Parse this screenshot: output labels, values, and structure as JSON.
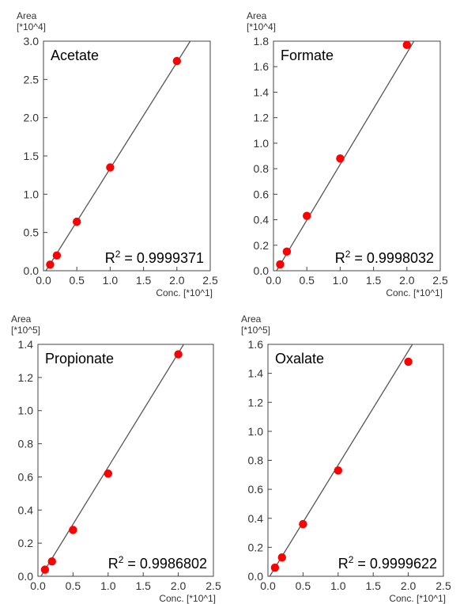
{
  "chart_data": [
    {
      "type": "scatter",
      "label": "Acetate",
      "ylabel_top": "Area",
      "ylabel_unit": "[*10^4]",
      "xlabel": "Conc. [*10^1]",
      "r2_prefix": "R",
      "r2_exp": "2",
      "r2_value": " = 0.9999371",
      "xlim": [
        0,
        2.5
      ],
      "ylim": [
        0,
        3.0
      ],
      "xticks": [
        "0.0",
        "0.5",
        "1.0",
        "1.5",
        "2.0",
        "2.5"
      ],
      "yticks": [
        "0.0",
        "0.5",
        "1.0",
        "1.5",
        "2.0",
        "2.5",
        "3.0"
      ],
      "points": [
        {
          "x": 0.1,
          "y": 0.08
        },
        {
          "x": 0.2,
          "y": 0.2
        },
        {
          "x": 0.5,
          "y": 0.64
        },
        {
          "x": 1.0,
          "y": 1.35
        },
        {
          "x": 2.0,
          "y": 2.74
        }
      ],
      "fit_line": [
        [
          0.0,
          -0.05
        ],
        [
          2.2,
          3.0
        ]
      ],
      "marker_color": "#ff0000",
      "line_color": "#555555"
    },
    {
      "type": "scatter",
      "label": "Formate",
      "ylabel_top": "Area",
      "ylabel_unit": "[*10^4]",
      "xlabel": "Conc. [*10^1]",
      "r2_prefix": "R",
      "r2_exp": "2",
      "r2_value": " = 0.9998032",
      "xlim": [
        0,
        2.5
      ],
      "ylim": [
        0,
        1.8
      ],
      "xticks": [
        "0.0",
        "0.5",
        "1.0",
        "1.5",
        "2.0",
        "2.5"
      ],
      "yticks": [
        "0.0",
        "0.2",
        "0.4",
        "0.6",
        "0.8",
        "1.0",
        "1.2",
        "1.4",
        "1.6",
        "1.8"
      ],
      "points": [
        {
          "x": 0.1,
          "y": 0.05
        },
        {
          "x": 0.2,
          "y": 0.15
        },
        {
          "x": 0.5,
          "y": 0.43
        },
        {
          "x": 1.0,
          "y": 0.88
        },
        {
          "x": 2.0,
          "y": 1.77
        }
      ],
      "fit_line": [
        [
          0.0,
          -0.04
        ],
        [
          2.22,
          1.9
        ]
      ],
      "marker_color": "#ff0000",
      "line_color": "#555555"
    },
    {
      "type": "scatter",
      "label": "Propionate",
      "ylabel_top": "Area",
      "ylabel_unit": "[*10^5]",
      "xlabel": "Conc. [*10^1]",
      "r2_prefix": "R",
      "r2_exp": "2",
      "r2_value": " = 0.9986802",
      "xlim": [
        0,
        2.5
      ],
      "ylim": [
        0,
        1.4
      ],
      "xticks": [
        "0.0",
        "0.5",
        "1.0",
        "1.5",
        "2.0",
        "2.5"
      ],
      "yticks": [
        "0.0",
        "0.2",
        "0.4",
        "0.6",
        "0.8",
        "1.0",
        "1.2",
        "1.4"
      ],
      "points": [
        {
          "x": 0.1,
          "y": 0.04
        },
        {
          "x": 0.2,
          "y": 0.09
        },
        {
          "x": 0.5,
          "y": 0.28
        },
        {
          "x": 1.0,
          "y": 0.62
        },
        {
          "x": 2.0,
          "y": 1.34
        }
      ],
      "fit_line": [
        [
          0.0,
          -0.03
        ],
        [
          2.12,
          1.43
        ]
      ],
      "marker_color": "#ff0000",
      "line_color": "#555555"
    },
    {
      "type": "scatter",
      "label": "Oxalate",
      "ylabel_top": "Area",
      "ylabel_unit": "[*10^5]",
      "xlabel": "Conc. [*10^1]",
      "r2_prefix": "R",
      "r2_exp": "2",
      "r2_value": " = 0.9999622",
      "xlim": [
        0,
        2.5
      ],
      "ylim": [
        0,
        1.6
      ],
      "xticks": [
        "0.0",
        "0.5",
        "1.0",
        "1.5",
        "2.0",
        "2.5"
      ],
      "yticks": [
        "0.0",
        "0.2",
        "0.4",
        "0.6",
        "0.8",
        "1.0",
        "1.2",
        "1.4",
        "1.6"
      ],
      "points": [
        {
          "x": 0.1,
          "y": 0.06
        },
        {
          "x": 0.2,
          "y": 0.13
        },
        {
          "x": 0.5,
          "y": 0.36
        },
        {
          "x": 1.0,
          "y": 0.73
        },
        {
          "x": 2.0,
          "y": 1.48
        }
      ],
      "fit_line": [
        [
          0.0,
          -0.02
        ],
        [
          2.16,
          1.68
        ]
      ],
      "marker_color": "#ff0000",
      "line_color": "#555555"
    }
  ]
}
